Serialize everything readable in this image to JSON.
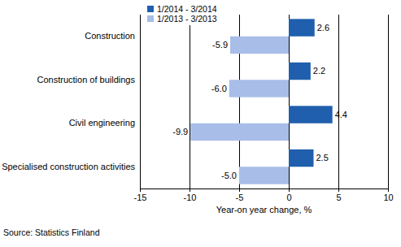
{
  "chart_data": {
    "type": "bar",
    "orientation": "horizontal",
    "categories": [
      "Construction",
      "Construction of buildings",
      "Civil engineering",
      "Specialised construction activities"
    ],
    "series": [
      {
        "name": "1/2014 - 3/2014",
        "color": "#1f5fad",
        "values": [
          2.6,
          2.2,
          4.4,
          2.5
        ]
      },
      {
        "name": "1/2013 - 3/2013",
        "color": "#a8bde8",
        "values": [
          -5.9,
          -6.0,
          -9.9,
          -5.0
        ],
        "value_labels": [
          "-5.9",
          "-6.0",
          "-9.9",
          "-5.0"
        ]
      }
    ],
    "xlabel": "Year-on year change, %",
    "annotations": [
      "Source: Statistics Finland"
    ],
    "xlim": [
      -15,
      10
    ],
    "xticks": [
      -15,
      -10,
      -5,
      0,
      5,
      10
    ],
    "grid": true,
    "legend": "upper left",
    "data_labels": true
  }
}
